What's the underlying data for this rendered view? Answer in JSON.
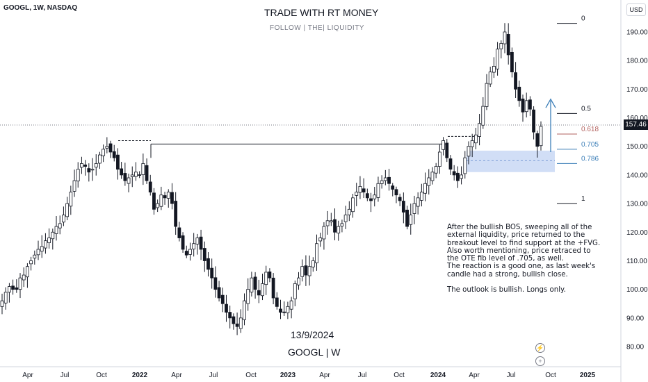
{
  "header": {
    "symbol_line": "GOOGL, 1W, NASDAQ",
    "currency": "USD"
  },
  "watermark": {
    "title": "TRADE WITH RT MONEY",
    "subtitle": "FOLLOW | THE| LIQUIDITY"
  },
  "annotations": {
    "date": "13/9/2024",
    "ticker": "GOOGL | W",
    "note_lines": [
      "After the bullish BOS, sweeping all of the",
      "external liquidity, price returned to the",
      "breakout level to find support at the +FVG.",
      "Also worth mentioning, price retraced to",
      "the OTE fib level of .705, as well.",
      "The reaction is a good one, as last week's",
      "candle had a strong, bullish close.",
      "",
      "The outlook is bullish.  Longs only."
    ]
  },
  "icons": {
    "lightning": "lightning-icon",
    "plus": "plus-icon",
    "up_arrow": "up-arrow-icon"
  },
  "colors": {
    "up": "#131722",
    "down": "#131722",
    "fvg_zone": "#c9d8f5",
    "arrow": "#3d7fb8",
    "fib_618": "#b2625f",
    "fib_705": "#3d7fb8",
    "price_line": "#787b86"
  },
  "chart_data": {
    "type": "candlestick",
    "symbol": "GOOGL",
    "interval": "1W",
    "exchange": "NASDAQ",
    "last_price": "157.46",
    "ylim": [
      75,
      197
    ],
    "y_ticks": [
      "80.00",
      "90.00",
      "100.00",
      "110.00",
      "120.00",
      "130.00",
      "140.00",
      "150.00",
      "160.00",
      "170.00",
      "180.00",
      "190.00"
    ],
    "x_ticks": [
      "Apr",
      "Jul",
      "Oct",
      "2022",
      "Apr",
      "Jul",
      "Oct",
      "2023",
      "Apr",
      "Jul",
      "Oct",
      "2024",
      "Apr",
      "Jul",
      "Oct",
      "2025"
    ],
    "weekly_close_path": [
      96,
      99,
      101,
      100,
      100,
      104,
      105,
      108,
      110,
      112,
      114,
      115,
      117,
      118,
      120,
      122,
      123,
      126,
      130,
      134,
      138,
      142,
      144,
      143,
      141,
      142,
      144,
      147,
      149,
      150,
      148,
      146,
      142,
      140,
      138,
      139,
      140,
      141,
      140,
      144,
      138,
      134,
      128,
      130,
      133,
      132,
      134,
      130,
      122,
      118,
      114,
      112,
      114,
      116,
      118,
      114,
      110,
      107,
      104,
      100,
      97,
      95,
      92,
      90,
      88,
      87,
      90,
      96,
      100,
      104,
      100,
      98,
      102,
      106,
      104,
      97,
      94,
      92,
      92,
      94,
      96,
      102,
      104,
      108,
      105,
      108,
      110,
      116,
      118,
      122,
      124,
      124,
      120,
      122,
      123,
      126,
      128,
      132,
      134,
      136,
      134,
      132,
      131,
      133,
      137,
      138,
      139,
      137,
      135,
      133,
      131,
      127,
      122,
      126,
      130,
      132,
      134,
      137,
      139,
      141,
      143,
      148,
      152,
      146,
      142,
      140,
      138,
      140,
      146,
      150,
      152,
      154,
      158,
      164,
      172,
      176,
      178,
      184,
      186,
      190,
      182,
      176,
      170,
      166,
      162,
      166,
      163,
      155,
      150,
      157
    ],
    "fvg_zone": [
      141,
      148.5
    ],
    "fib_levels": [
      {
        "label": "0",
        "value": 193
      },
      {
        "label": "0.5",
        "value": 161.5
      },
      {
        "label": "0.618",
        "value": 154.3
      },
      {
        "label": "0.705",
        "value": 149
      },
      {
        "label": "0.786",
        "value": 144
      },
      {
        "label": "1",
        "value": 130
      }
    ],
    "bos_level": 150.8,
    "liquidity_high": 152
  }
}
